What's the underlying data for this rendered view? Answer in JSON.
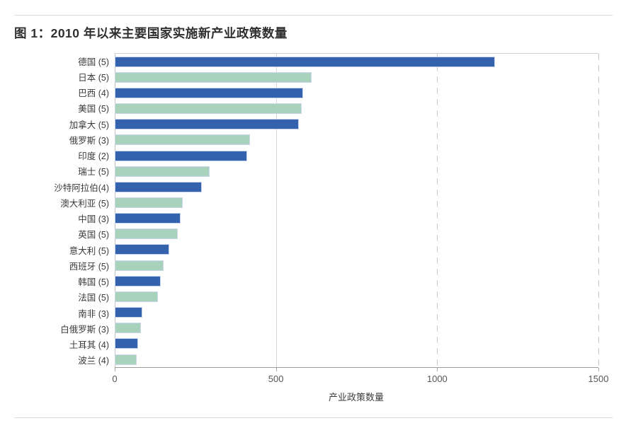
{
  "figure": {
    "title": "图 1：2010 年以来主要国家实施新产业政策数量"
  },
  "chart_data": {
    "type": "bar",
    "orientation": "horizontal",
    "title": "图 1：2010 年以来主要国家实施新产业政策数量",
    "xlabel": "产业政策数量",
    "ylabel": "",
    "xlim": [
      0,
      1500
    ],
    "x_ticks": [
      0,
      500,
      1000,
      1500
    ],
    "grid": "vertical, dashed beyond 500",
    "legend": "none",
    "palette": {
      "primary_blue": "#3462ad",
      "secondary_green": "#a9d2bc",
      "pattern": "alternating, starting with blue"
    },
    "categories": [
      "德国 (5)",
      "日本 (5)",
      "巴西 (4)",
      "美国 (5)",
      "加拿大 (5)",
      "俄罗斯 (3)",
      "印度 (2)",
      "瑞士 (5)",
      "沙特阿拉伯(4)",
      "澳大利亚 (5)",
      "中国 (3)",
      "英国 (5)",
      "意大利 (5)",
      "西班牙 (5)",
      "韩国 (5)",
      "法国 (5)",
      "南非 (3)",
      "白俄罗斯 (3)",
      "土耳其 (4)",
      "波兰 (4)"
    ],
    "values": [
      1180,
      610,
      585,
      580,
      570,
      420,
      410,
      295,
      270,
      210,
      205,
      195,
      170,
      152,
      142,
      133,
      86,
      81,
      73,
      68
    ]
  }
}
